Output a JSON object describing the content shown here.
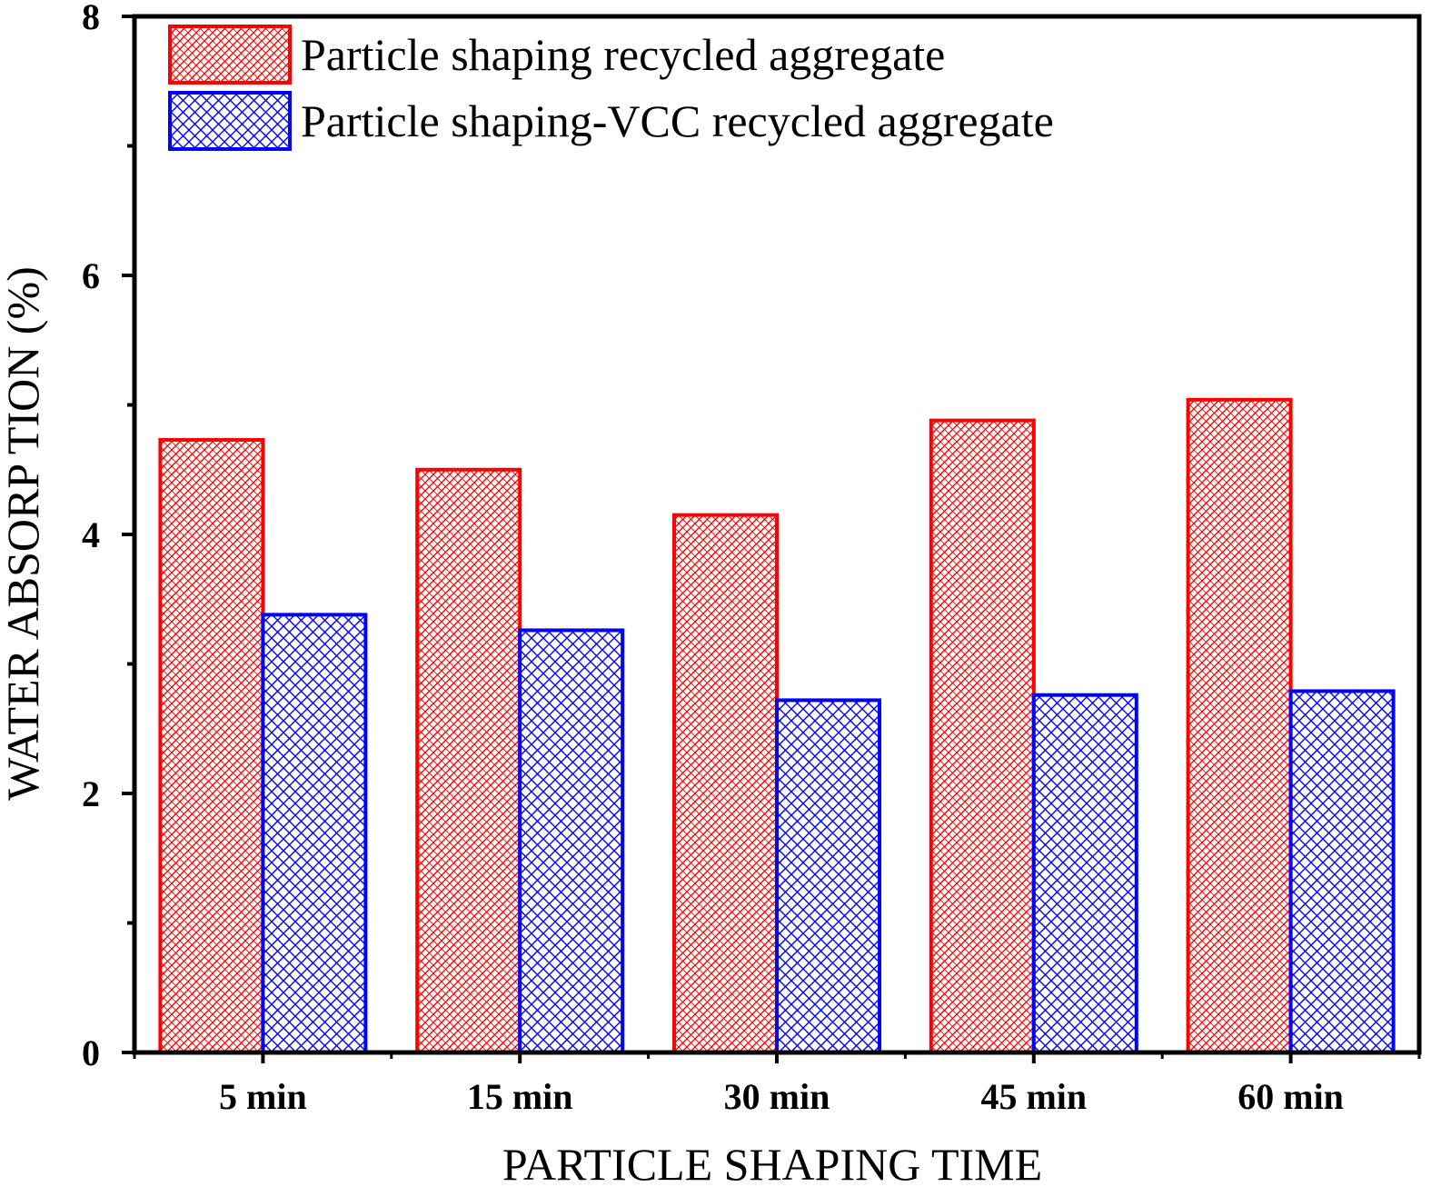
{
  "chart_data": {
    "type": "bar",
    "title": "",
    "xlabel": "PARTICLE SHAPING TIME",
    "ylabel": "WATER ABSORP TION (%)",
    "categories": [
      "5 min",
      "15 min",
      "30 min",
      "45 min",
      "60 min"
    ],
    "series": [
      {
        "name": "Particle shaping recycled aggregate",
        "values": [
          4.73,
          4.5,
          4.15,
          4.88,
          5.04
        ],
        "color": "#ff0000",
        "pattern": "diagonal-crosshatch"
      },
      {
        "name": "Particle shaping-VCC recycled aggregate",
        "values": [
          3.38,
          3.26,
          2.72,
          2.76,
          2.79
        ],
        "color": "#0000ff",
        "pattern": "crosshatch"
      }
    ],
    "ylim": [
      0,
      8
    ],
    "yticks": [
      0,
      2,
      4,
      6,
      8
    ],
    "ytick_labels": [
      "0",
      "2",
      "4",
      "6",
      "8"
    ],
    "grid": false,
    "legend_position": "top-left"
  }
}
